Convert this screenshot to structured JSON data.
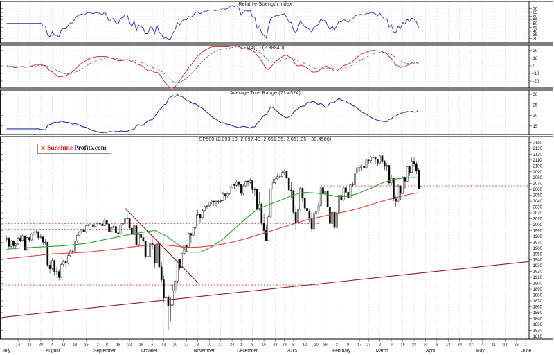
{
  "branding": {
    "sun_icon": "☀",
    "part1": "Sunshine",
    "part2": "Profits.com"
  },
  "colors": {
    "grid": "#d9d9d9",
    "hgrid": "#e3e3e3",
    "border": "#000000",
    "rsi_line": "#22339f",
    "macd_line": "#c22222",
    "signal_line": "#3344cc",
    "atr_line": "#22339f",
    "ma_fast": "#2f9e2f",
    "ma_slow": "#e04040",
    "level": "#cc3333",
    "trend": "#8e1f1f",
    "up": "#ffffff",
    "down": "#000000",
    "wick": "#111111"
  },
  "axis": {
    "total_days": 230,
    "week_ticks": [
      [
        5,
        "14"
      ],
      [
        10,
        "21"
      ],
      [
        15,
        "28"
      ],
      [
        20,
        "4"
      ],
      [
        25,
        "11"
      ],
      [
        30,
        "18"
      ],
      [
        35,
        "25"
      ],
      [
        40,
        "2"
      ],
      [
        44,
        "8"
      ],
      [
        49,
        "15"
      ],
      [
        54,
        "22"
      ],
      [
        59,
        "29"
      ],
      [
        64,
        "6"
      ],
      [
        69,
        "13"
      ],
      [
        74,
        "20"
      ],
      [
        79,
        "27"
      ],
      [
        84,
        "3"
      ],
      [
        89,
        "10"
      ],
      [
        94,
        "17"
      ],
      [
        99,
        "24"
      ],
      [
        103,
        "1"
      ],
      [
        108,
        "8"
      ],
      [
        113,
        "15"
      ],
      [
        118,
        "22"
      ],
      [
        122,
        "29"
      ],
      [
        126,
        "5"
      ],
      [
        131,
        "12"
      ],
      [
        136,
        "20"
      ],
      [
        140,
        "26"
      ],
      [
        145,
        "2"
      ],
      [
        150,
        "9"
      ],
      [
        155,
        "17"
      ],
      [
        159,
        "23"
      ],
      [
        164,
        "2"
      ],
      [
        169,
        "9"
      ],
      [
        174,
        "16"
      ],
      [
        179,
        "23"
      ],
      [
        184,
        "30"
      ],
      [
        189,
        "6"
      ],
      [
        194,
        "13"
      ],
      [
        199,
        "20"
      ],
      [
        204,
        "27"
      ],
      [
        209,
        "4"
      ],
      [
        214,
        "11"
      ],
      [
        219,
        "18"
      ],
      [
        224,
        "26"
      ],
      [
        228,
        "1"
      ]
    ],
    "month_labels": [
      [
        0,
        "July"
      ],
      [
        19,
        "August"
      ],
      [
        40,
        "September"
      ],
      [
        61,
        "October"
      ],
      [
        84,
        "November"
      ],
      [
        103,
        "December"
      ],
      [
        125,
        "2015"
      ],
      [
        145,
        "February"
      ],
      [
        164,
        "March"
      ],
      [
        186,
        "April"
      ],
      [
        208,
        "May"
      ],
      [
        228,
        "June"
      ]
    ]
  },
  "chart_data": {
    "type": "candlestick",
    "title": "SP500 (2,093.10, 2,097.43, 2,061.05, 2,061.05, -30.4500)",
    "last_quote": {
      "open": 2093.1,
      "high": 2097.43,
      "low": 2061.05,
      "close": 2061.05,
      "change": -30.45
    },
    "price_ylim": [
      1805,
      2150
    ],
    "price_ticks": {
      "min": 1810,
      "max": 2140,
      "step": 10
    },
    "candles": [
      [
        1975,
        1981,
        1971,
        1977
      ],
      [
        1977,
        1979,
        1959,
        1963
      ],
      [
        1963,
        1974,
        1960,
        1972
      ],
      [
        1972,
        1973,
        1959,
        1964
      ],
      [
        1964,
        1968,
        1958,
        1967
      ],
      [
        1967,
        1979,
        1965,
        1977
      ],
      [
        1977,
        1982,
        1970,
        1973
      ],
      [
        1973,
        1983,
        1971,
        1981
      ],
      [
        1981,
        1981,
        1955,
        1958
      ],
      [
        1958,
        1979,
        1956,
        1978
      ],
      [
        1978,
        1979,
        1970,
        1974
      ],
      [
        1974,
        1986,
        1972,
        1984
      ],
      [
        1984,
        1989,
        1982,
        1987
      ],
      [
        1987,
        1991,
        1985,
        1988
      ],
      [
        1988,
        1989,
        1974,
        1978
      ],
      [
        1978,
        1984,
        1976,
        1979
      ],
      [
        1979,
        1980,
        1966,
        1970
      ],
      [
        1970,
        1975,
        1965,
        1970
      ],
      [
        1970,
        1971,
        1928,
        1931
      ],
      [
        1931,
        1938,
        1917,
        1925
      ],
      [
        1925,
        1943,
        1922,
        1939
      ],
      [
        1939,
        1940,
        1913,
        1920
      ],
      [
        1920,
        1928,
        1915,
        1920
      ],
      [
        1920,
        1924,
        1905,
        1910
      ],
      [
        1910,
        1935,
        1909,
        1932
      ],
      [
        1932,
        1940,
        1928,
        1937
      ],
      [
        1937,
        1940,
        1927,
        1934
      ],
      [
        1934,
        1949,
        1932,
        1947
      ],
      [
        1947,
        1957,
        1945,
        1955
      ],
      [
        1955,
        1958,
        1950,
        1955
      ],
      [
        1955,
        1973,
        1953,
        1972
      ],
      [
        1972,
        1983,
        1970,
        1982
      ],
      [
        1982,
        1989,
        1980,
        1987
      ],
      [
        1987,
        1993,
        1985,
        1992
      ],
      [
        1992,
        1994,
        1984,
        1988
      ],
      [
        1988,
        1999,
        1986,
        1998
      ],
      [
        1998,
        2001,
        1996,
        2000
      ],
      [
        2000,
        2002,
        1996,
        2000
      ],
      [
        2000,
        2001,
        1993,
        1997
      ],
      [
        1997,
        2004,
        1995,
        2003
      ],
      [
        2003,
        2006,
        1998,
        2002
      ],
      [
        2002,
        2004,
        1996,
        2001
      ],
      [
        2001,
        2002,
        1992,
        1998
      ],
      [
        1998,
        2011,
        1997,
        2008
      ],
      [
        2008,
        2009,
        1997,
        2001
      ],
      [
        2001,
        2002,
        1984,
        1988
      ],
      [
        1988,
        1997,
        1985,
        1995
      ],
      [
        1995,
        1999,
        1991,
        1997
      ],
      [
        1997,
        1998,
        1980,
        1986
      ],
      [
        1986,
        1987,
        1978,
        1984
      ],
      [
        1984,
        2001,
        1982,
        1999
      ],
      [
        1999,
        2004,
        1995,
        2002
      ],
      [
        2002,
        2012,
        2000,
        2011
      ],
      [
        2011,
        2019,
        2006,
        2010
      ],
      [
        2010,
        2011,
        1991,
        1994
      ],
      [
        1994,
        1995,
        1978,
        1983
      ],
      [
        1983,
        1999,
        1982,
        1998
      ],
      [
        1998,
        1999,
        1964,
        1966
      ],
      [
        1966,
        1986,
        1963,
        1983
      ],
      [
        1983,
        1984,
        1974,
        1978
      ],
      [
        1978,
        1985,
        1968,
        1972
      ],
      [
        1972,
        1973,
        1941,
        1946
      ],
      [
        1946,
        1952,
        1926,
        1946
      ],
      [
        1946,
        1971,
        1944,
        1968
      ],
      [
        1968,
        1977,
        1958,
        1965
      ],
      [
        1965,
        1966,
        1926,
        1935
      ],
      [
        1935,
        1971,
        1933,
        1969
      ],
      [
        1969,
        1970,
        1925,
        1928
      ],
      [
        1928,
        1936,
        1901,
        1906
      ],
      [
        1906,
        1913,
        1867,
        1875
      ],
      [
        1875,
        1899,
        1871,
        1877
      ],
      [
        1877,
        1881,
        1820,
        1862
      ],
      [
        1862,
        1876,
        1835,
        1863
      ],
      [
        1863,
        1898,
        1861,
        1887
      ],
      [
        1887,
        1905,
        1882,
        1904
      ],
      [
        1904,
        1942,
        1900,
        1941
      ],
      [
        1941,
        1942,
        1922,
        1927
      ],
      [
        1927,
        1952,
        1925,
        1951
      ],
      [
        1951,
        1966,
        1948,
        1965
      ],
      [
        1965,
        1966,
        1954,
        1962
      ],
      [
        1962,
        1986,
        1960,
        1985
      ],
      [
        1985,
        1986,
        1969,
        1982
      ],
      [
        1982,
        1996,
        1980,
        1995
      ],
      [
        1995,
        2019,
        1993,
        2018
      ],
      [
        2018,
        2025,
        2014,
        2018
      ],
      [
        2018,
        2019,
        2002,
        2012
      ],
      [
        2012,
        2026,
        2010,
        2024
      ],
      [
        2024,
        2032,
        2022,
        2031
      ],
      [
        2031,
        2034,
        2026,
        2032
      ],
      [
        2032,
        2039,
        2030,
        2038
      ],
      [
        2038,
        2041,
        2035,
        2040
      ],
      [
        2040,
        2041,
        2032,
        2038
      ],
      [
        2038,
        2042,
        2031,
        2039
      ],
      [
        2039,
        2042,
        2035,
        2040
      ],
      [
        2040,
        2043,
        2037,
        2041
      ],
      [
        2041,
        2056,
        2040,
        2052
      ],
      [
        2052,
        2053,
        2041,
        2049
      ],
      [
        2049,
        2055,
        2045,
        2053
      ],
      [
        2053,
        2066,
        2051,
        2064
      ],
      [
        2064,
        2070,
        2062,
        2069
      ],
      [
        2069,
        2070,
        2060,
        2067
      ],
      [
        2067,
        2076,
        2065,
        2073
      ],
      [
        2073,
        2074,
        2064,
        2068
      ],
      [
        2068,
        2069,
        2049,
        2053
      ],
      [
        2053,
        2068,
        2050,
        2066
      ],
      [
        2066,
        2076,
        2064,
        2074
      ],
      [
        2074,
        2077,
        2066,
        2072
      ],
      [
        2072,
        2079,
        2070,
        2075
      ],
      [
        2075,
        2076,
        2054,
        2060
      ],
      [
        2060,
        2064,
        2049,
        2060
      ],
      [
        2060,
        2061,
        2024,
        2026
      ],
      [
        2026,
        2055,
        2024,
        2035
      ],
      [
        2035,
        2037,
        1999,
        2002
      ],
      [
        2002,
        2019,
        1983,
        1990
      ],
      [
        1990,
        1999,
        1972,
        1973
      ],
      [
        1973,
        2016,
        1972,
        2013
      ],
      [
        2013,
        2062,
        2012,
        2061
      ],
      [
        2061,
        2078,
        2060,
        2071
      ],
      [
        2071,
        2079,
        2069,
        2078
      ],
      [
        2078,
        2087,
        2077,
        2082
      ],
      [
        2082,
        2087,
        2080,
        2082
      ],
      [
        2082,
        2092,
        2081,
        2089
      ],
      [
        2089,
        2094,
        2085,
        2091
      ],
      [
        2091,
        2092,
        2078,
        2080
      ],
      [
        2080,
        2081,
        2056,
        2059
      ],
      [
        2059,
        2072,
        2046,
        2058
      ],
      [
        2058,
        2059,
        2017,
        2021
      ],
      [
        2021,
        2030,
        1992,
        2003
      ],
      [
        2003,
        2030,
        2000,
        2026
      ],
      [
        2026,
        2064,
        2025,
        2062
      ],
      [
        2062,
        2064,
        2038,
        2045
      ],
      [
        2045,
        2049,
        2022,
        2028
      ],
      [
        2028,
        2056,
        2008,
        2023
      ],
      [
        2023,
        2027,
        2004,
        2011
      ],
      [
        2011,
        2021,
        1988,
        1993
      ],
      [
        1993,
        2021,
        1992,
        2019
      ],
      [
        2019,
        2028,
        2015,
        2023
      ],
      [
        2023,
        2038,
        2020,
        2032
      ],
      [
        2032,
        2064,
        2030,
        2063
      ],
      [
        2063,
        2064,
        2050,
        2052
      ],
      [
        2052,
        2058,
        2050,
        2057
      ],
      [
        2057,
        2058,
        2029,
        2030
      ],
      [
        2030,
        2042,
        1989,
        2002
      ],
      [
        2002,
        2024,
        2000,
        2021
      ],
      [
        2021,
        2022,
        1993,
        1995
      ],
      [
        1995,
        2021,
        1980,
        2020
      ],
      [
        2020,
        2054,
        2016,
        2050
      ],
      [
        2050,
        2054,
        2036,
        2042
      ],
      [
        2042,
        2063,
        2040,
        2063
      ],
      [
        2063,
        2072,
        2049,
        2055
      ],
      [
        2055,
        2056,
        2042,
        2046
      ],
      [
        2046,
        2070,
        2045,
        2068
      ],
      [
        2068,
        2073,
        2064,
        2068
      ],
      [
        2068,
        2089,
        2067,
        2088
      ],
      [
        2088,
        2098,
        2086,
        2097
      ],
      [
        2097,
        2101,
        2090,
        2100
      ],
      [
        2100,
        2102,
        2092,
        2100
      ],
      [
        2100,
        2102,
        2090,
        2097
      ],
      [
        2097,
        2111,
        2095,
        2110
      ],
      [
        2110,
        2111,
        2103,
        2109
      ],
      [
        2109,
        2117,
        2105,
        2115
      ],
      [
        2115,
        2120,
        2110,
        2114
      ],
      [
        2114,
        2116,
        2104,
        2111
      ],
      [
        2111,
        2112,
        2099,
        2105
      ],
      [
        2105,
        2118,
        2103,
        2117
      ],
      [
        2117,
        2118,
        2104,
        2108
      ],
      [
        2108,
        2110,
        2093,
        2099
      ],
      [
        2099,
        2105,
        2091,
        2101
      ],
      [
        2101,
        2102,
        2067,
        2071
      ],
      [
        2071,
        2084,
        2067,
        2079
      ],
      [
        2079,
        2080,
        2040,
        2044
      ],
      [
        2044,
        2050,
        2031,
        2040
      ],
      [
        2040,
        2069,
        2038,
        2066
      ],
      [
        2066,
        2067,
        2042,
        2053
      ],
      [
        2053,
        2082,
        2052,
        2081
      ],
      [
        2081,
        2082,
        2061,
        2074
      ],
      [
        2074,
        2100,
        2072,
        2099
      ],
      [
        2099,
        2101,
        2083,
        2089
      ],
      [
        2089,
        2114,
        2088,
        2108
      ],
      [
        2108,
        2115,
        2098,
        2104
      ],
      [
        2104,
        2108,
        2086,
        2091
      ],
      [
        2093,
        2097,
        2061,
        2061
      ]
    ],
    "ma_sample_step": 5,
    "ma_fast": [
      1958,
      1960,
      1961,
      1962,
      1963,
      1964,
      1966,
      1968,
      1972,
      1976,
      1980,
      1984,
      1987,
      1990,
      1981,
      1967,
      1953,
      1953,
      1962,
      1975,
      1993,
      2010,
      2026,
      2034,
      2041,
      2049,
      2055,
      2054,
      2052,
      2048,
      2048,
      2054,
      2062,
      2071,
      2077,
      2080,
      2080
    ],
    "ma_slow": [
      1942,
      1944,
      1946,
      1948,
      1950,
      1951,
      1952,
      1953,
      1955,
      1957,
      1959,
      1962,
      1964,
      1966,
      1965,
      1963,
      1961,
      1962,
      1964,
      1967,
      1971,
      1976,
      1982,
      1988,
      1994,
      2000,
      2006,
      2011,
      2015,
      2019,
      2023,
      2028,
      2034,
      2040,
      2045,
      2050,
      2054
    ],
    "levels": [
      {
        "price": 2066,
        "from": 138,
        "to": 230
      },
      {
        "price": 2002,
        "from": -2,
        "to": 137
      },
      {
        "price": 1992,
        "from": -2,
        "to": 58
      },
      {
        "price": 1897,
        "from": -2,
        "to": 137
      }
    ],
    "trendlines": [
      {
        "from": [
          -2,
          1842
        ],
        "to": [
          230,
          1937
        ]
      },
      {
        "from": [
          52,
          2028
        ],
        "to": [
          84,
          1901
        ]
      }
    ],
    "indicators": {
      "rsi": {
        "title": "Relative Strength Index",
        "period": 14,
        "ylim": [
          24,
          80
        ],
        "yticks": [
          70,
          65,
          60,
          55,
          50,
          45,
          40,
          35,
          30
        ]
      },
      "macd": {
        "title": "MACD (2.38840)",
        "fast": 12,
        "slow": 26,
        "signal": 9,
        "ylim": [
          -29,
          27
        ],
        "yticks": [
          20,
          10,
          0,
          -10,
          -20
        ]
      },
      "atr": {
        "title": "Average True Range (21.4524)",
        "period": 14,
        "ylim": [
          11,
          32
        ],
        "yticks": [
          30,
          25,
          20,
          15
        ]
      }
    }
  }
}
